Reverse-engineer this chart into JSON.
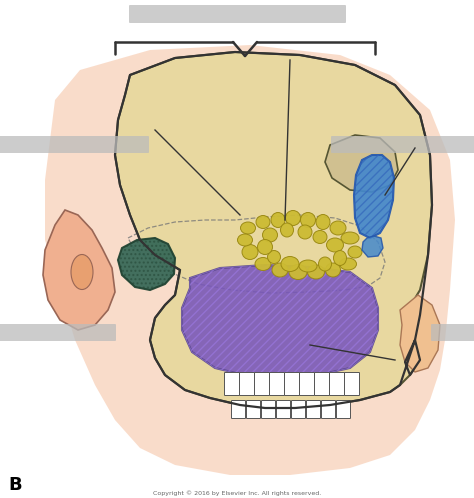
{
  "bg_color": "#ffffff",
  "label_B": "B",
  "copyright": "Copyright © 2016 by Elsevier Inc. All rights reserved.",
  "skull_color": "#e8d8a0",
  "skull_edge": "#555533",
  "skin_color": "#f5c8a0",
  "ear_color": "#f0b090",
  "ear_edge": "#996655",
  "nose_color": "#f0c090",
  "bracket_color": "#333333",
  "arrow_color": "#333333",
  "maxillary_color": "#7755bb",
  "maxillary_edge": "#554488",
  "ethmoid_color": "#ccbb33",
  "ethmoid_edge": "#998811",
  "sphenoid_color": "#4488cc",
  "sphenoid_edge": "#2255aa",
  "mastoid_color": "#336655",
  "mastoid_edge": "#224433",
  "gray_bar": "#bbbbbb",
  "tooth_color": "#ffffff",
  "tooth_edge": "#555555"
}
